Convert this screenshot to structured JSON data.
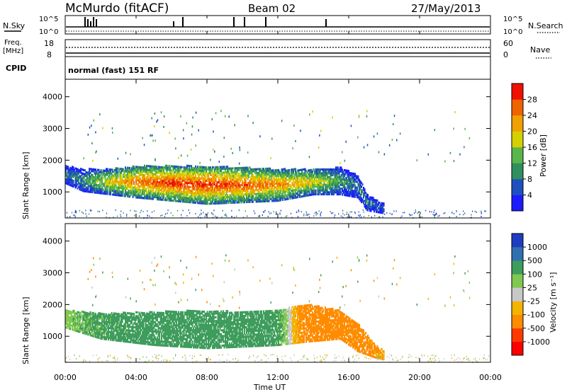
{
  "header": {
    "station": "McMurdo (fitACF)",
    "beam": "Beam 02",
    "date": "27/May/2013"
  },
  "status_panel": {
    "left_label": "N.Sky",
    "right_label": "N.Search",
    "left_ticks": [
      "10^5",
      "10^0"
    ],
    "right_ticks": [
      "10^5",
      "10^0"
    ]
  },
  "freq_panel": {
    "left_label_1": "Freq.",
    "left_label_2": "[MHz]",
    "right_label": "Nave",
    "left_ticks": [
      "18",
      "8"
    ],
    "right_ticks": [
      "60",
      "0"
    ]
  },
  "cpid": {
    "label": "CPID",
    "value": "normal (fast) 151 RF"
  },
  "colors": {
    "power_scale": [
      "#1c1cff",
      "#2050c0",
      "#2f8f5f",
      "#5ab54a",
      "#d6d000",
      "#f0a000",
      "#f06400",
      "#f01000"
    ],
    "velocity_scale": [
      "#ff0000",
      "#ff3a00",
      "#ff8c00",
      "#f2b400",
      "#c8c8c8",
      "#80c850",
      "#3e9c5c",
      "#3070b0",
      "#1e3cc0"
    ]
  },
  "chart_data": [
    {
      "type": "heatmap",
      "title": "",
      "quantity": "Power",
      "ylabel": "Slant Range [km]",
      "xlabel": "",
      "yticks": [
        "1000",
        "2000",
        "3000",
        "4000"
      ],
      "ylim": [
        180,
        4550
      ],
      "xlim": [
        0,
        24
      ],
      "colorbar_label": "Power [dB]",
      "colorbar_ticks": [
        "4",
        "8",
        "12",
        "16",
        "20",
        "24",
        "28"
      ],
      "colorbar_range": [
        0,
        32
      ],
      "echo_band": [
        {
          "x": 0.0,
          "lo": 1250,
          "hi": 1800,
          "v": 8
        },
        {
          "x": 1.0,
          "lo": 1000,
          "hi": 1700,
          "v": 10
        },
        {
          "x": 2.5,
          "lo": 900,
          "hi": 1700,
          "v": 20
        },
        {
          "x": 4.0,
          "lo": 800,
          "hi": 1800,
          "v": 26
        },
        {
          "x": 6.0,
          "lo": 700,
          "hi": 1800,
          "v": 30
        },
        {
          "x": 8.0,
          "lo": 600,
          "hi": 1800,
          "v": 30
        },
        {
          "x": 10.0,
          "lo": 650,
          "hi": 1750,
          "v": 28
        },
        {
          "x": 12.0,
          "lo": 700,
          "hi": 1700,
          "v": 25
        },
        {
          "x": 14.0,
          "lo": 900,
          "hi": 1700,
          "v": 20
        },
        {
          "x": 15.5,
          "lo": 900,
          "hi": 1750,
          "v": 12
        },
        {
          "x": 16.5,
          "lo": 800,
          "hi": 1500,
          "v": 8
        },
        {
          "x": 17.0,
          "lo": 400,
          "hi": 900,
          "v": 10
        },
        {
          "x": 18.0,
          "lo": 300,
          "hi": 600,
          "v": 6
        }
      ]
    },
    {
      "type": "heatmap",
      "title": "",
      "quantity": "Velocity",
      "ylabel": "Slant Range [km]",
      "xlabel": "Time UT",
      "yticks": [
        "1000",
        "2000",
        "3000",
        "4000"
      ],
      "ylim": [
        180,
        4550
      ],
      "xlim": [
        0,
        24
      ],
      "xticks": [
        "00:00",
        "04:00",
        "08:00",
        "12:00",
        "16:00",
        "20:00",
        "00:00"
      ],
      "colorbar_label": "Velocity [m s⁻¹]",
      "colorbar_ticks": [
        "-1000",
        "-500",
        "-100",
        "-25",
        "25",
        "100",
        "500",
        "1000"
      ],
      "echo_band": [
        {
          "x": 0.0,
          "lo": 1250,
          "hi": 1800,
          "v": 60
        },
        {
          "x": 2.0,
          "lo": 900,
          "hi": 1700,
          "v": 150
        },
        {
          "x": 5.0,
          "lo": 700,
          "hi": 1750,
          "v": 200
        },
        {
          "x": 8.0,
          "lo": 600,
          "hi": 1800,
          "v": 250
        },
        {
          "x": 10.0,
          "lo": 650,
          "hi": 1750,
          "v": 300
        },
        {
          "x": 12.0,
          "lo": 700,
          "hi": 1800,
          "v": 150
        },
        {
          "x": 13.5,
          "lo": 800,
          "hi": 2000,
          "v": -200
        },
        {
          "x": 15.5,
          "lo": 900,
          "hi": 1800,
          "v": -250
        },
        {
          "x": 16.5,
          "lo": 500,
          "hi": 1400,
          "v": -200
        },
        {
          "x": 17.5,
          "lo": 300,
          "hi": 700,
          "v": -150
        },
        {
          "x": 18.0,
          "lo": 250,
          "hi": 500,
          "v": -100
        }
      ]
    }
  ]
}
